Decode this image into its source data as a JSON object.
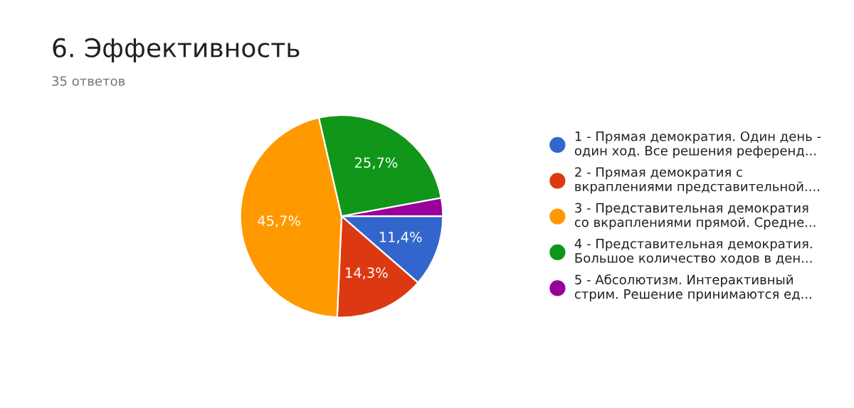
{
  "chart_data": {
    "type": "pie",
    "title": "6. Эффективность",
    "subtitle": "35 ответов",
    "categories": [
      "1 - Прямая демократия. Один день -\nодин ход. Все решения референд...",
      "2 - Прямая демократия с\nвкраплениями представительной....",
      "3 - Представительная демократия\nсо вкраплениями прямой. Средне...",
      "4 - Представительная демократия.\nБольшое количество ходов в ден...",
      "5 - Абсолютизм. Интерактивный\nстрим. Решение принимаются ед..."
    ],
    "values": [
      11.4,
      14.3,
      45.7,
      25.7,
      2.9
    ],
    "value_labels": [
      "11,4%",
      "14,3%",
      "45,7%",
      "25,7%",
      null
    ],
    "colors": [
      "#3366cc",
      "#dc3912",
      "#ff9900",
      "#109618",
      "#990099"
    ],
    "legend": "right"
  }
}
